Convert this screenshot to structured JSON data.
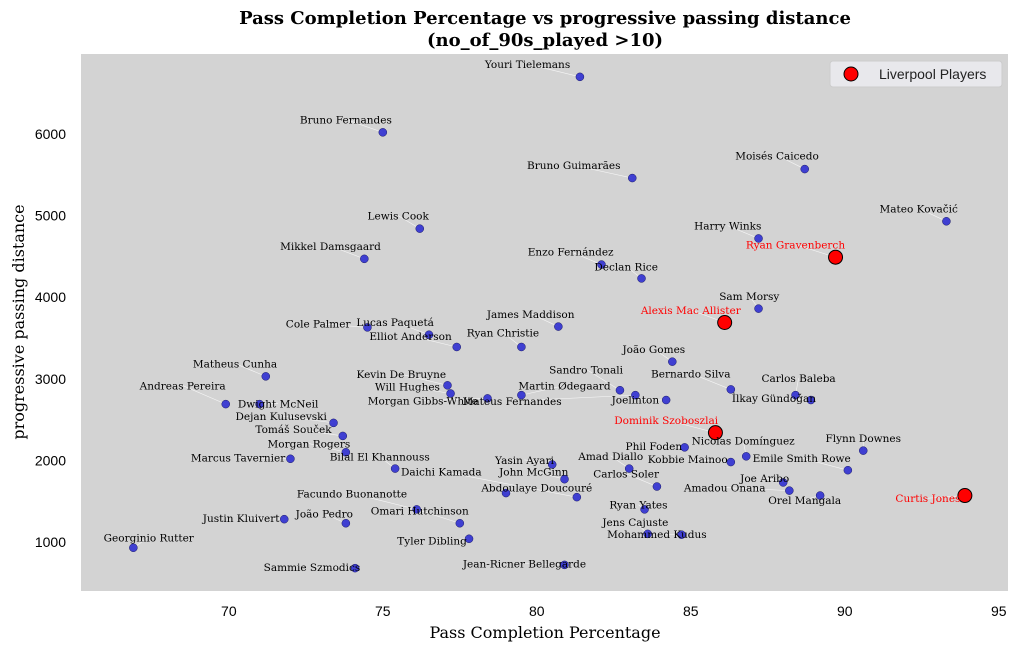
{
  "chart_data": {
    "type": "scatter",
    "title_line1": "Pass Completion Percentage vs progressive passing distance",
    "title_line2": "(no_of_90s_played >10)",
    "xlabel": "Pass Completion Percentage",
    "ylabel": "progressive passing distance",
    "xlim": [
      65.2,
      95.3
    ],
    "ylim": [
      400,
      6980
    ],
    "xticks": [
      70,
      75,
      80,
      85,
      90,
      95
    ],
    "yticks": [
      1000,
      2000,
      3000,
      4000,
      5000,
      6000
    ],
    "grid": false,
    "legend": {
      "position": "top-right",
      "label": "Liverpool Players"
    },
    "colors": {
      "background": "#d3d3d3",
      "other": "#2424d0",
      "liverpool": "#ff0000"
    },
    "points": [
      {
        "name": "Youri Tielemans",
        "x": 81.4,
        "y": 6700,
        "lfc": false,
        "lx": 79.7,
        "ly": 6808
      },
      {
        "name": "Bruno Fernandes",
        "x": 75.0,
        "y": 6020,
        "lfc": false,
        "lx": 73.8,
        "ly": 6128
      },
      {
        "name": "Bruno Guimarães",
        "x": 83.1,
        "y": 5460,
        "lfc": false,
        "lx": 81.2,
        "ly": 5568
      },
      {
        "name": "Moisés Caicedo",
        "x": 88.7,
        "y": 5570,
        "lfc": false,
        "lx": 87.8,
        "ly": 5690
      },
      {
        "name": "Mateo Kovačić",
        "x": 93.3,
        "y": 4930,
        "lfc": false,
        "lx": 92.4,
        "ly": 5040
      },
      {
        "name": "Lewis Cook",
        "x": 76.2,
        "y": 4840,
        "lfc": false,
        "lx": 75.5,
        "ly": 4950
      },
      {
        "name": "Harry Winks",
        "x": 87.2,
        "y": 4720,
        "lfc": false,
        "lx": 86.2,
        "ly": 4828
      },
      {
        "name": "Ryan Gravenberch",
        "x": 89.7,
        "y": 4490,
        "lfc": true,
        "lx": 88.4,
        "ly": 4595
      },
      {
        "name": "Mikkel Damsgaard",
        "x": 74.4,
        "y": 4470,
        "lfc": false,
        "lx": 73.3,
        "ly": 4578
      },
      {
        "name": "Enzo Fernández",
        "x": 82.1,
        "y": 4400,
        "lfc": false,
        "lx": 81.1,
        "ly": 4508
      },
      {
        "name": "Declan Rice",
        "x": 83.4,
        "y": 4230,
        "lfc": false,
        "lx": 82.9,
        "ly": 4328
      },
      {
        "name": "Sam Morsy",
        "x": 87.2,
        "y": 3860,
        "lfc": false,
        "lx": 86.9,
        "ly": 3968
      },
      {
        "name": "Alexis Mac Allister",
        "x": 86.1,
        "y": 3690,
        "lfc": true,
        "lx": 85.0,
        "ly": 3795
      },
      {
        "name": "James Maddison",
        "x": 80.7,
        "y": 3640,
        "lfc": false,
        "lx": 79.8,
        "ly": 3748
      },
      {
        "name": "Lucas Paquetá",
        "x": 76.5,
        "y": 3540,
        "lfc": false,
        "lx": 75.4,
        "ly": 3648
      },
      {
        "name": "Cole Palmer",
        "x": 74.5,
        "y": 3630,
        "lfc": false,
        "lx": 72.9,
        "ly": 3628
      },
      {
        "name": "Elliot Anderson",
        "x": 77.4,
        "y": 3390,
        "lfc": false,
        "lx": 75.9,
        "ly": 3478
      },
      {
        "name": "Ryan Christie",
        "x": 79.5,
        "y": 3390,
        "lfc": false,
        "lx": 78.9,
        "ly": 3518
      },
      {
        "name": "João Gomes",
        "x": 84.4,
        "y": 3210,
        "lfc": false,
        "lx": 83.8,
        "ly": 3318
      },
      {
        "name": "Matheus Cunha",
        "x": 71.2,
        "y": 3030,
        "lfc": false,
        "lx": 70.2,
        "ly": 3138
      },
      {
        "name": "Kevin De Bruyne",
        "x": 77.1,
        "y": 2920,
        "lfc": false,
        "lx": 75.6,
        "ly": 3008
      },
      {
        "name": "Sandro Tonali",
        "x": 82.7,
        "y": 2860,
        "lfc": false,
        "lx": 81.6,
        "ly": 3068
      },
      {
        "name": "Bernardo Silva",
        "x": 86.3,
        "y": 2870,
        "lfc": false,
        "lx": 85.0,
        "ly": 3018
      },
      {
        "name": "Carlos Baleba",
        "x": 88.4,
        "y": 2800,
        "lfc": false,
        "lx": 88.5,
        "ly": 2958
      },
      {
        "name": "Will Hughes",
        "x": 77.2,
        "y": 2820,
        "lfc": false,
        "lx": 75.8,
        "ly": 2858
      },
      {
        "name": "Martin Ødegaard",
        "x": 79.5,
        "y": 2800,
        "lfc": false,
        "lx": 80.9,
        "ly": 2868
      },
      {
        "name": "Andreas Pereira",
        "x": 69.9,
        "y": 2690,
        "lfc": false,
        "lx": 68.5,
        "ly": 2868
      },
      {
        "name": "Morgan Gibbs-White",
        "x": 78.4,
        "y": 2760,
        "lfc": false,
        "lx": 76.3,
        "ly": 2688
      },
      {
        "name": "Mateus Fernandes",
        "x": 83.2,
        "y": 2800,
        "lfc": false,
        "lx": 79.2,
        "ly": 2678
      },
      {
        "name": "Joelinton",
        "x": 84.2,
        "y": 2740,
        "lfc": false,
        "lx": 83.2,
        "ly": 2698
      },
      {
        "name": "İlkay Gündoğan",
        "x": 88.9,
        "y": 2740,
        "lfc": false,
        "lx": 87.7,
        "ly": 2718
      },
      {
        "name": "Dwight McNeil",
        "x": 71.0,
        "y": 2690,
        "lfc": false,
        "lx": 71.6,
        "ly": 2648
      },
      {
        "name": "Dejan Kulusevski",
        "x": 73.4,
        "y": 2460,
        "lfc": false,
        "lx": 71.7,
        "ly": 2498
      },
      {
        "name": "Dominik Szoboszlai",
        "x": 85.8,
        "y": 2340,
        "lfc": true,
        "lx": 84.2,
        "ly": 2448
      },
      {
        "name": "Tomáš Souček",
        "x": 73.7,
        "y": 2300,
        "lfc": false,
        "lx": 72.1,
        "ly": 2338
      },
      {
        "name": "Nicolas Domínguez",
        "x": 86.8,
        "y": 2050,
        "lfc": false,
        "lx": 86.7,
        "ly": 2198
      },
      {
        "name": "Flynn Downes",
        "x": 90.6,
        "y": 2120,
        "lfc": false,
        "lx": 90.6,
        "ly": 2228
      },
      {
        "name": "Morgan Rogers",
        "x": 73.8,
        "y": 2100,
        "lfc": false,
        "lx": 72.6,
        "ly": 2158
      },
      {
        "name": "Phil Foden",
        "x": 84.8,
        "y": 2160,
        "lfc": false,
        "lx": 83.8,
        "ly": 2128
      },
      {
        "name": "Marcus Tavernier",
        "x": 72.0,
        "y": 2020,
        "lfc": false,
        "lx": 70.3,
        "ly": 1988
      },
      {
        "name": "Bilal El Khannouss",
        "x": 75.4,
        "y": 1900,
        "lfc": false,
        "lx": 74.9,
        "ly": 1998
      },
      {
        "name": "Amad Diallo",
        "x": 83.0,
        "y": 1900,
        "lfc": false,
        "lx": 82.4,
        "ly": 2008
      },
      {
        "name": "Yasin Ayari",
        "x": 80.5,
        "y": 1950,
        "lfc": false,
        "lx": 79.6,
        "ly": 1958
      },
      {
        "name": "Kobbie Mainoo",
        "x": 86.3,
        "y": 1980,
        "lfc": false,
        "lx": 84.9,
        "ly": 1968
      },
      {
        "name": "Emile Smith Rowe",
        "x": 90.1,
        "y": 1880,
        "lfc": false,
        "lx": 88.6,
        "ly": 1978
      },
      {
        "name": "Daichi Kamada",
        "x": 81.3,
        "y": 1550,
        "lfc": false,
        "lx": 76.9,
        "ly": 1818
      },
      {
        "name": "John McGinn",
        "x": 80.9,
        "y": 1770,
        "lfc": false,
        "lx": 79.9,
        "ly": 1818
      },
      {
        "name": "Carlos Soler",
        "x": 83.9,
        "y": 1680,
        "lfc": false,
        "lx": 82.9,
        "ly": 1788
      },
      {
        "name": "Joe Aribo",
        "x": 88.0,
        "y": 1730,
        "lfc": false,
        "lx": 87.4,
        "ly": 1738
      },
      {
        "name": "Curtis Jones",
        "x": 93.9,
        "y": 1570,
        "lfc": true,
        "lx": 92.7,
        "ly": 1488
      },
      {
        "name": "Abdoulaye Doucouré",
        "x": 79.0,
        "y": 1600,
        "lfc": false,
        "lx": 80.0,
        "ly": 1618
      },
      {
        "name": "Amadou Onana",
        "x": 88.2,
        "y": 1630,
        "lfc": false,
        "lx": 86.1,
        "ly": 1618
      },
      {
        "name": "Facundo Buonanotte",
        "x": 76.1,
        "y": 1400,
        "lfc": false,
        "lx": 74.0,
        "ly": 1548
      },
      {
        "name": "Orel Mangala",
        "x": 89.2,
        "y": 1570,
        "lfc": false,
        "lx": 88.7,
        "ly": 1468
      },
      {
        "name": "Ryan Yates",
        "x": 83.5,
        "y": 1400,
        "lfc": false,
        "lx": 83.3,
        "ly": 1408
      },
      {
        "name": "Omari Hutchinson",
        "x": 77.5,
        "y": 1230,
        "lfc": false,
        "lx": 76.2,
        "ly": 1338
      },
      {
        "name": "João Pedro",
        "x": 73.8,
        "y": 1230,
        "lfc": false,
        "lx": 73.1,
        "ly": 1298
      },
      {
        "name": "Justin Kluivert",
        "x": 71.8,
        "y": 1280,
        "lfc": false,
        "lx": 70.4,
        "ly": 1248
      },
      {
        "name": "Jens Cajuste",
        "x": 83.6,
        "y": 1100,
        "lfc": false,
        "lx": 83.2,
        "ly": 1198
      },
      {
        "name": "Mohammed Kudus",
        "x": 84.7,
        "y": 1090,
        "lfc": false,
        "lx": 83.9,
        "ly": 1048
      },
      {
        "name": "Tyler Dibling",
        "x": 77.8,
        "y": 1040,
        "lfc": false,
        "lx": 76.6,
        "ly": 968
      },
      {
        "name": "Georginio Rutter",
        "x": 66.9,
        "y": 930,
        "lfc": false,
        "lx": 67.4,
        "ly": 1008
      },
      {
        "name": "Jean-Ricner Bellegarde",
        "x": 80.9,
        "y": 720,
        "lfc": false,
        "lx": 79.6,
        "ly": 688
      },
      {
        "name": "Sammie Szmodics",
        "x": 74.1,
        "y": 680,
        "lfc": false,
        "lx": 72.7,
        "ly": 648
      }
    ]
  }
}
